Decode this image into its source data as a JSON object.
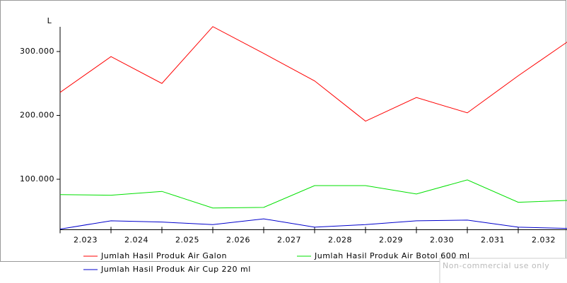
{
  "chart_data": {
    "type": "line",
    "y_label": "L",
    "x": [
      2022.5,
      2023.5,
      2024.5,
      2025.5,
      2026.5,
      2027.5,
      2028.5,
      2029.5,
      2030.5,
      2031.5,
      2032.5
    ],
    "xlim": [
      2022.5,
      2032.5
    ],
    "xticks": [
      {
        "value": 2023,
        "label": "2.023"
      },
      {
        "value": 2024,
        "label": "2.024"
      },
      {
        "value": 2025,
        "label": "2.025"
      },
      {
        "value": 2026,
        "label": "2.026"
      },
      {
        "value": 2027,
        "label": "2.027"
      },
      {
        "value": 2028,
        "label": "2.028"
      },
      {
        "value": 2029,
        "label": "2.029"
      },
      {
        "value": 2030,
        "label": "2.030"
      },
      {
        "value": 2031,
        "label": "2.031"
      },
      {
        "value": 2032,
        "label": "2.032"
      }
    ],
    "ylim": [
      21000,
      339000
    ],
    "yticks": [
      {
        "value": 100000,
        "label": "100.000"
      },
      {
        "value": 200000,
        "label": "200.000"
      },
      {
        "value": 300000,
        "label": "300.000"
      }
    ],
    "series": [
      {
        "name": "Jumlah Hasil Produk Air Galon",
        "color": "#ff0000",
        "values": [
          236000,
          292000,
          250000,
          339000,
          297000,
          254000,
          191000,
          228000,
          204000,
          262000,
          317000
        ]
      },
      {
        "name": "Jumlah Hasil Produk Air Botol 600 ml",
        "color": "#00e000",
        "values": [
          76000,
          75000,
          81000,
          55000,
          56000,
          90000,
          90000,
          77000,
          99000,
          64000,
          67000
        ]
      },
      {
        "name": "Jumlah Hasil Produk Air Cup 220 ml",
        "color": "#0000cc",
        "values": [
          22000,
          35000,
          33000,
          29000,
          38000,
          25000,
          29000,
          35000,
          36000,
          25000,
          23000
        ]
      }
    ],
    "watermark": "Non-commercial use only"
  }
}
